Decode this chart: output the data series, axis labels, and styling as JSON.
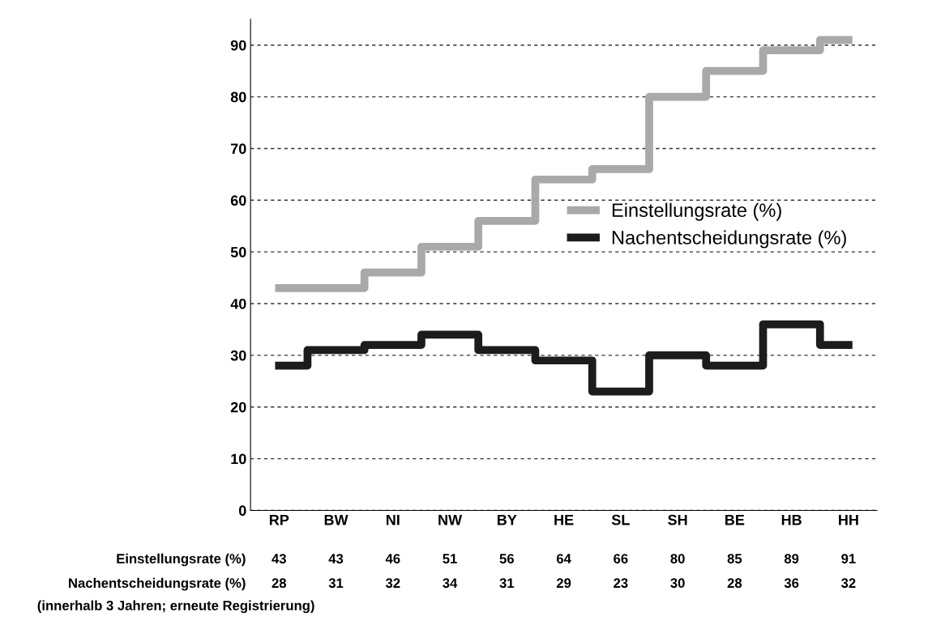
{
  "chart_data": {
    "type": "step",
    "categories": [
      "RP",
      "BW",
      "NI",
      "NW",
      "BY",
      "HE",
      "SL",
      "SH",
      "BE",
      "HB",
      "HH"
    ],
    "series": [
      {
        "name": "Einstellungsrate (%)",
        "color": "#a9a9a9",
        "values": [
          43,
          43,
          46,
          51,
          56,
          64,
          66,
          80,
          85,
          89,
          91
        ]
      },
      {
        "name": "Nachentscheidungsrate (%)",
        "color": "#1c1c1c",
        "values": [
          28,
          31,
          32,
          34,
          31,
          29,
          23,
          30,
          28,
          36,
          32
        ]
      }
    ],
    "ylim": [
      0,
      95
    ],
    "yticks": [
      0,
      10,
      20,
      30,
      40,
      50,
      60,
      70,
      80,
      90
    ],
    "grid": "y",
    "legend": "right",
    "data_labels": true,
    "annotations": [
      "(innerhalb 3 Jahren; erneute Registrierung)"
    ]
  }
}
